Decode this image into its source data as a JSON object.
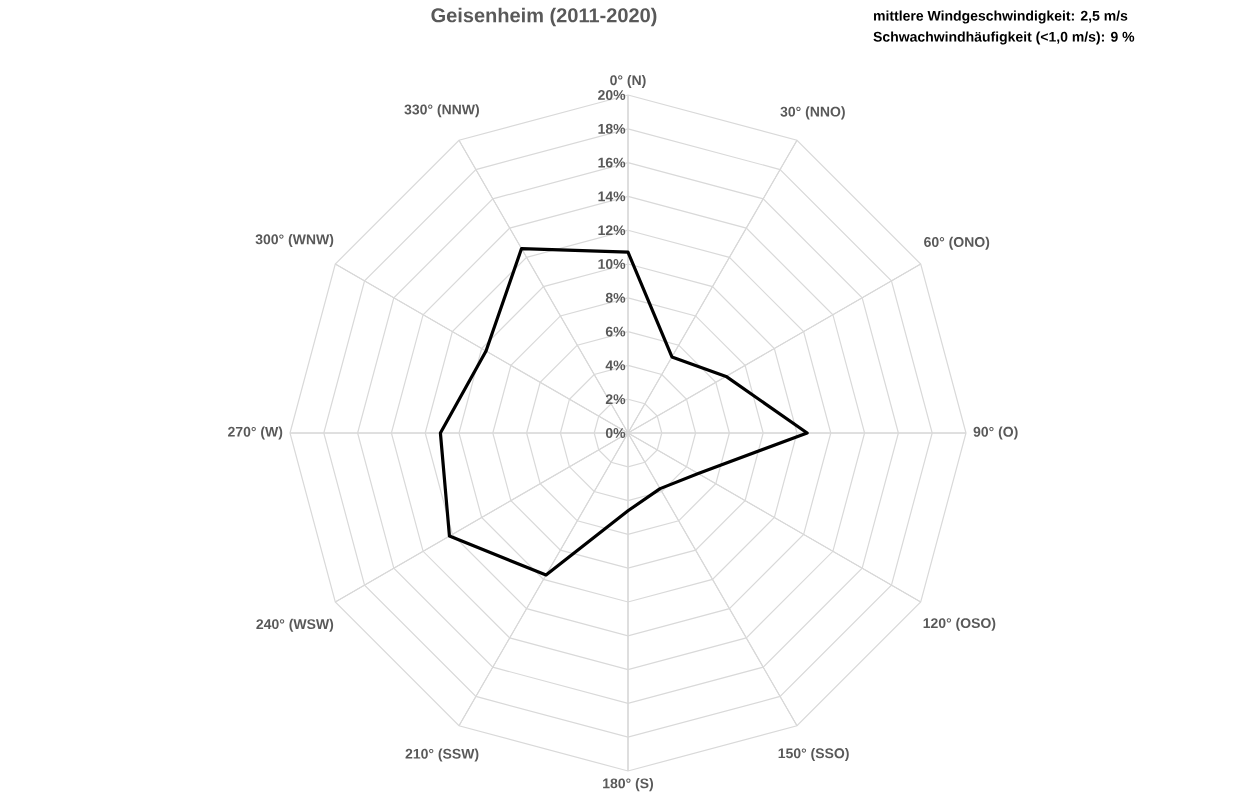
{
  "chart_data": {
    "type": "radar",
    "title": "Geisenheim (2011-2020)",
    "annotations": [
      "mittlere Windgeschwindigkeit: 2,5 m/s",
      "Schwachwindhäufigkeit (<1,0 m/s): 9 %"
    ],
    "categories": [
      "0° (N)",
      "30° (NNO)",
      "60° (ONO)",
      "90° (O)",
      "120° (OSO)",
      "150° (SSO)",
      "180° (S)",
      "210° (SSW)",
      "240° (WSW)",
      "270° (W)",
      "300° (WNW)",
      "330° (NNW)"
    ],
    "series": [
      {
        "color": "#000000",
        "values": [
          10.7,
          5.2,
          6.7,
          10.6,
          4.8,
          3.8,
          4.6,
          9.7,
          12.2,
          11.1,
          9.7,
          12.6
        ]
      }
    ],
    "ylim": [
      0,
      20
    ],
    "yticks": [
      {
        "value": 0,
        "label": "0%"
      },
      {
        "value": 2,
        "label": "2%"
      },
      {
        "value": 4,
        "label": "4%"
      },
      {
        "value": 6,
        "label": "6%"
      },
      {
        "value": 8,
        "label": "8%"
      },
      {
        "value": 10,
        "label": "10%"
      },
      {
        "value": 12,
        "label": "12%"
      },
      {
        "value": 14,
        "label": "14%"
      },
      {
        "value": 16,
        "label": "16%"
      },
      {
        "value": 18,
        "label": "18%"
      },
      {
        "value": 20,
        "label": "20%"
      }
    ],
    "grid": true
  }
}
